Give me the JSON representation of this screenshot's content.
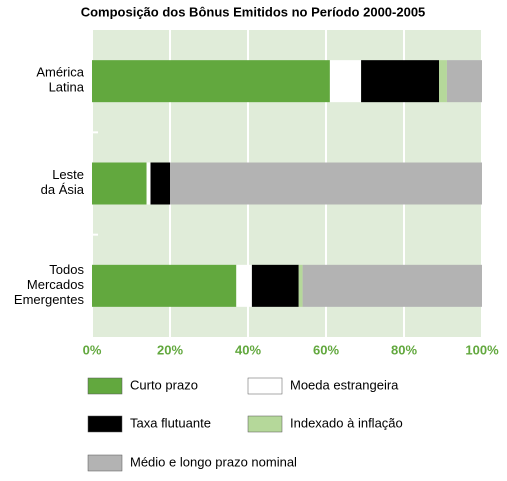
{
  "chart_data": {
    "type": "stacked-barh",
    "title": "Composição dos Bônus Emitidos no Período 2000-2005",
    "categories": [
      [
        "América",
        "Latina"
      ],
      [
        "Leste",
        "da Ásia"
      ],
      [
        "Todos",
        "Mercados",
        "Emergentes"
      ]
    ],
    "series": [
      {
        "name": "Curto prazo",
        "color": "#62a83e",
        "values": [
          61,
          14,
          37
        ]
      },
      {
        "name": "Moeda estrangeira",
        "color": "#ffffff",
        "values": [
          8,
          1,
          4
        ]
      },
      {
        "name": "Taxa flutuante",
        "color": "#000000",
        "values": [
          20,
          5,
          12
        ]
      },
      {
        "name": "Indexado à inflação",
        "color": "#b5d89a",
        "values": [
          2,
          0,
          1
        ]
      },
      {
        "name": "Médio e longo prazo nominal",
        "color": "#b3b3b3",
        "values": [
          9,
          80,
          46
        ]
      }
    ],
    "xlim": [
      0,
      100
    ],
    "xticks": [
      {
        "value": 0,
        "label": "0%"
      },
      {
        "value": 20,
        "label": "20%"
      },
      {
        "value": 40,
        "label": "40%"
      },
      {
        "value": 60,
        "label": "60%"
      },
      {
        "value": 80,
        "label": "80%"
      },
      {
        "value": 100,
        "label": "100%"
      }
    ],
    "grid": true
  }
}
